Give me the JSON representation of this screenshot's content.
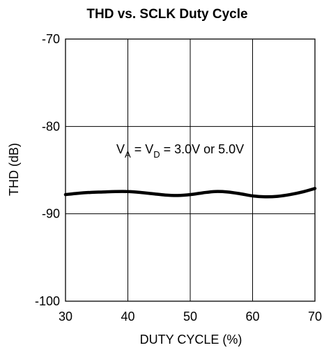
{
  "chart_data": {
    "type": "line",
    "title": "THD vs. SCLK Duty Cycle",
    "xlabel": "DUTY CYCLE (%)",
    "ylabel": "THD (dB)",
    "xlim": [
      30,
      70
    ],
    "ylim": [
      -100,
      -70
    ],
    "xticks": [
      30,
      40,
      50,
      60,
      70
    ],
    "yticks": [
      -70,
      -80,
      -90,
      -100
    ],
    "grid": true,
    "annotation": {
      "parts": [
        {
          "text": "V",
          "sub": false
        },
        {
          "text": "A",
          "sub": true
        },
        {
          "text": " = V",
          "sub": false
        },
        {
          "text": "D",
          "sub": true
        },
        {
          "text": " = 3.0V or 5.0V",
          "sub": false
        }
      ]
    },
    "series": [
      {
        "x": [
          30,
          32,
          34,
          36,
          38,
          40,
          42,
          44,
          46,
          48,
          50,
          52,
          54,
          56,
          58,
          60,
          62,
          64,
          66,
          68,
          70
        ],
        "values": [
          -87.8,
          -87.65,
          -87.55,
          -87.5,
          -87.45,
          -87.45,
          -87.55,
          -87.7,
          -87.85,
          -87.9,
          -87.8,
          -87.6,
          -87.45,
          -87.5,
          -87.7,
          -87.95,
          -88.05,
          -88.0,
          -87.8,
          -87.5,
          -87.1
        ],
        "color": "#000000"
      }
    ]
  }
}
